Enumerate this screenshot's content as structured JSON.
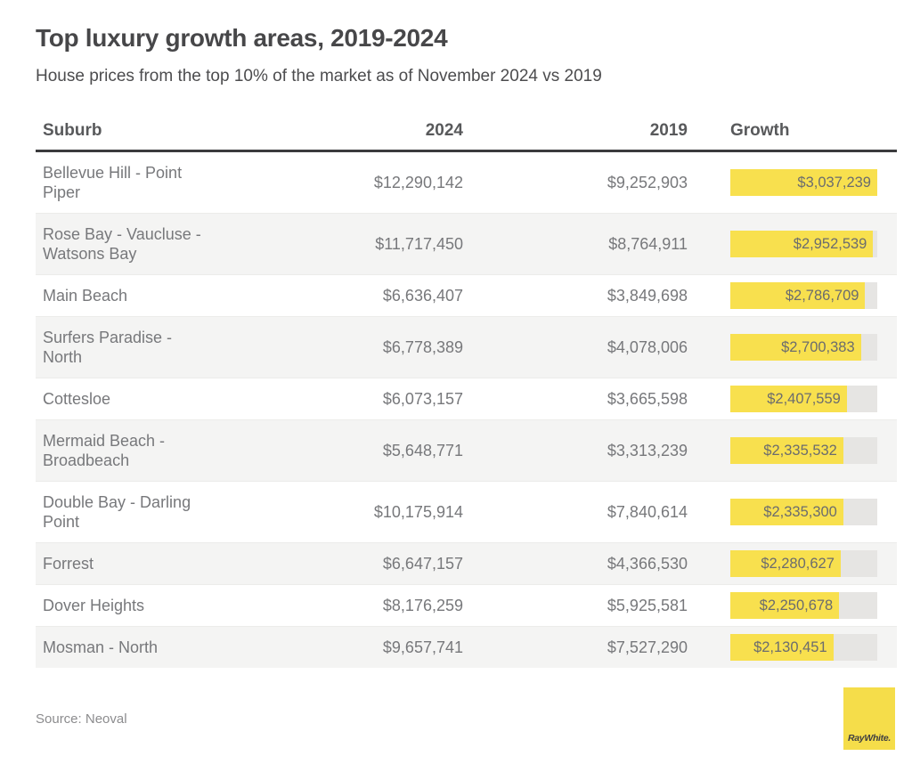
{
  "header": {
    "title": "Top luxury growth areas, 2019-2024",
    "subtitle": "House prices from the top 10% of the market as of November 2024 vs 2019"
  },
  "table": {
    "columns": {
      "suburb": "Suburb",
      "y2024": "2024",
      "y2019": "2019",
      "growth": "Growth"
    },
    "rows": [
      {
        "suburb": "Bellevue Hill - Point Piper",
        "price_2024": "$12,290,142",
        "price_2019": "$9,252,903",
        "growth": "$3,037,239",
        "growth_value": 3037239
      },
      {
        "suburb": "Rose Bay - Vaucluse - Watsons Bay",
        "price_2024": "$11,717,450",
        "price_2019": "$8,764,911",
        "growth": "$2,952,539",
        "growth_value": 2952539
      },
      {
        "suburb": "Main Beach",
        "price_2024": "$6,636,407",
        "price_2019": "$3,849,698",
        "growth": "$2,786,709",
        "growth_value": 2786709
      },
      {
        "suburb": "Surfers Paradise - North",
        "price_2024": "$6,778,389",
        "price_2019": "$4,078,006",
        "growth": "$2,700,383",
        "growth_value": 2700383
      },
      {
        "suburb": "Cottesloe",
        "price_2024": "$6,073,157",
        "price_2019": "$3,665,598",
        "growth": "$2,407,559",
        "growth_value": 2407559
      },
      {
        "suburb": "Mermaid Beach - Broadbeach",
        "price_2024": "$5,648,771",
        "price_2019": "$3,313,239",
        "growth": "$2,335,532",
        "growth_value": 2335532
      },
      {
        "suburb": "Double Bay - Darling Point",
        "price_2024": "$10,175,914",
        "price_2019": "$7,840,614",
        "growth": "$2,335,300",
        "growth_value": 2335300
      },
      {
        "suburb": "Forrest",
        "price_2024": "$6,647,157",
        "price_2019": "$4,366,530",
        "growth": "$2,280,627",
        "growth_value": 2280627
      },
      {
        "suburb": "Dover Heights",
        "price_2024": "$8,176,259",
        "price_2019": "$5,925,581",
        "growth": "$2,250,678",
        "growth_value": 2250678
      },
      {
        "suburb": "Mosman - North",
        "price_2024": "$9,657,741",
        "price_2019": "$7,527,290",
        "growth": "$2,130,451",
        "growth_value": 2130451
      }
    ]
  },
  "footer": {
    "source": "Source: Neoval",
    "logo_text": "RayWhite."
  },
  "colors": {
    "accent_yellow": "#F8E04E",
    "bar_track_gray": "#E6E5E3",
    "row_alt_gray": "#F4F4F3",
    "header_rule": "#3B3B3D",
    "body_text": "#77787B"
  },
  "chart_data": {
    "type": "table",
    "title": "Top luxury growth areas, 2019-2024",
    "subtitle": "House prices from the top 10% of the market as of November 2024 vs 2019",
    "columns": [
      "Suburb",
      "2024",
      "2019",
      "Growth"
    ],
    "rows": [
      {
        "suburb": "Bellevue Hill - Point Piper",
        "price_2024": 12290142,
        "price_2019": 9252903,
        "growth": 3037239
      },
      {
        "suburb": "Rose Bay - Vaucluse - Watsons Bay",
        "price_2024": 11717450,
        "price_2019": 8764911,
        "growth": 2952539
      },
      {
        "suburb": "Main Beach",
        "price_2024": 6636407,
        "price_2019": 3849698,
        "growth": 2786709
      },
      {
        "suburb": "Surfers Paradise - North",
        "price_2024": 6778389,
        "price_2019": 4078006,
        "growth": 2700383
      },
      {
        "suburb": "Cottesloe",
        "price_2024": 6073157,
        "price_2019": 3665598,
        "growth": 2407559
      },
      {
        "suburb": "Mermaid Beach - Broadbeach",
        "price_2024": 5648771,
        "price_2019": 3313239,
        "growth": 2335532
      },
      {
        "suburb": "Double Bay - Darling Point",
        "price_2024": 10175914,
        "price_2019": 7840614,
        "growth": 2335300
      },
      {
        "suburb": "Forrest",
        "price_2024": 6647157,
        "price_2019": 4366530,
        "growth": 2280627
      },
      {
        "suburb": "Dover Heights",
        "price_2024": 8176259,
        "price_2019": 5925581,
        "growth": 2250678
      },
      {
        "suburb": "Mosman - North",
        "price_2024": 9657741,
        "price_2019": 7527290,
        "growth": 2130451
      }
    ],
    "growth_bars": {
      "embedded_in_column": "Growth",
      "orientation": "horizontal",
      "scale": "zero-based, max = largest growth value",
      "max_value": 3037239,
      "bar_color": "#F8E04E",
      "track_color": "#E6E5E3"
    },
    "source": "Source: Neoval",
    "brand": "RayWhite."
  }
}
